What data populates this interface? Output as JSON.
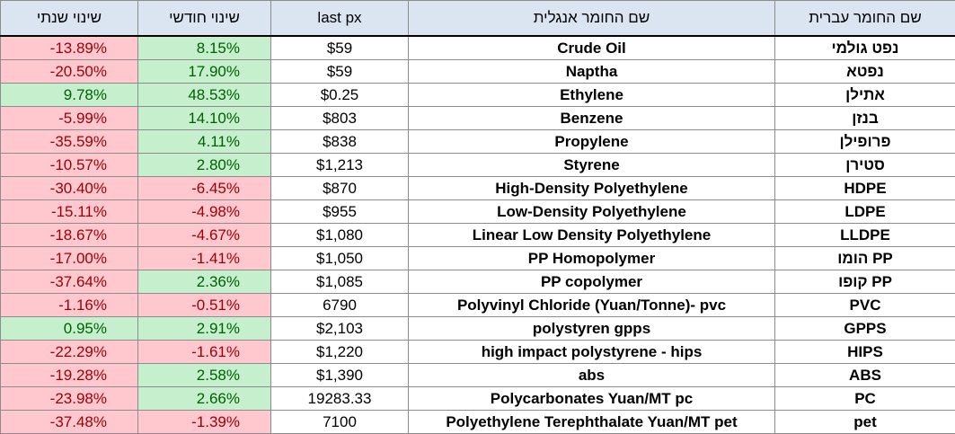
{
  "headers": {
    "yearly_change": "שינוי שנתי",
    "monthly_change": "שינוי חודשי",
    "last_px": "last px",
    "english_name": "שם החומר אנגלית",
    "hebrew_name": "שם החומר עברית"
  },
  "colors": {
    "header_bg": "#dbe5f1",
    "negative_bg": "#ffc7ce",
    "negative_text": "#9c0006",
    "positive_bg": "#c6efce",
    "positive_text": "#006100"
  },
  "rows": [
    {
      "yearly": "-13.89%",
      "yearly_sign": "neg",
      "monthly": "8.15%",
      "monthly_sign": "pos",
      "px": "$59",
      "en": "Crude Oil",
      "he": "נפט גולמי"
    },
    {
      "yearly": "-20.50%",
      "yearly_sign": "neg",
      "monthly": "17.90%",
      "monthly_sign": "pos",
      "px": "$59",
      "en": "Naptha",
      "he": "נפטא"
    },
    {
      "yearly": "9.78%",
      "yearly_sign": "pos",
      "monthly": "48.53%",
      "monthly_sign": "pos",
      "px": "$0.25",
      "en": "Ethylene",
      "he": "אתילן"
    },
    {
      "yearly": "-5.99%",
      "yearly_sign": "neg",
      "monthly": "14.10%",
      "monthly_sign": "pos",
      "px": "$803",
      "en": "Benzene",
      "he": "בנזן"
    },
    {
      "yearly": "-35.59%",
      "yearly_sign": "neg",
      "monthly": "4.11%",
      "monthly_sign": "pos",
      "px": "$838",
      "en": "Propylene",
      "he": "פרופילן"
    },
    {
      "yearly": "-10.57%",
      "yearly_sign": "neg",
      "monthly": "2.80%",
      "monthly_sign": "pos",
      "px": "$1,213",
      "en": "Styrene",
      "he": "סטירן"
    },
    {
      "yearly": "-30.40%",
      "yearly_sign": "neg",
      "monthly": "-6.45%",
      "monthly_sign": "neg",
      "px": "$870",
      "en": "High-Density Polyethylene",
      "he": "HDPE"
    },
    {
      "yearly": "-15.11%",
      "yearly_sign": "neg",
      "monthly": "-4.98%",
      "monthly_sign": "neg",
      "px": "$955",
      "en": "Low-Density Polyethylene",
      "he": "LDPE"
    },
    {
      "yearly": "-18.67%",
      "yearly_sign": "neg",
      "monthly": "-4.67%",
      "monthly_sign": "neg",
      "px": "$1,080",
      "en": "Linear Low Density Polyethylene",
      "he": "LLDPE"
    },
    {
      "yearly": "-17.00%",
      "yearly_sign": "neg",
      "monthly": "-1.41%",
      "monthly_sign": "neg",
      "px": "$1,050",
      "en": "PP Homopolymer",
      "he": "הומו PP"
    },
    {
      "yearly": "-37.64%",
      "yearly_sign": "neg",
      "monthly": "2.36%",
      "monthly_sign": "pos",
      "px": "$1,085",
      "en": "PP copolymer",
      "he": "קופו PP"
    },
    {
      "yearly": "-1.16%",
      "yearly_sign": "neg",
      "monthly": "-0.51%",
      "monthly_sign": "neg",
      "px": "6790",
      "en": "Polyvinyl Chloride  (Yuan/Tonne)- pvc",
      "he": "PVC"
    },
    {
      "yearly": "0.95%",
      "yearly_sign": "pos",
      "monthly": "2.91%",
      "monthly_sign": "pos",
      "px": "$2,103",
      "en": "polystyren gpps",
      "he": "GPPS"
    },
    {
      "yearly": "-22.29%",
      "yearly_sign": "neg",
      "monthly": "-1.61%",
      "monthly_sign": "neg",
      "px": "$1,220",
      "en": "high impact polystyrene - hips",
      "he": "HIPS"
    },
    {
      "yearly": "-19.28%",
      "yearly_sign": "neg",
      "monthly": "2.58%",
      "monthly_sign": "pos",
      "px": "$1,390",
      "en": "abs",
      "he": "ABS"
    },
    {
      "yearly": "-23.98%",
      "yearly_sign": "neg",
      "monthly": "2.66%",
      "monthly_sign": "pos",
      "px": "19283.33",
      "en": "Polycarbonates   Yuan/MT pc",
      "he": "PC"
    },
    {
      "yearly": "-37.48%",
      "yearly_sign": "neg",
      "monthly": "-1.39%",
      "monthly_sign": "neg",
      "px": "7100",
      "en": "Polyethylene Terephthalate  Yuan/MT pet",
      "he": "pet"
    }
  ]
}
